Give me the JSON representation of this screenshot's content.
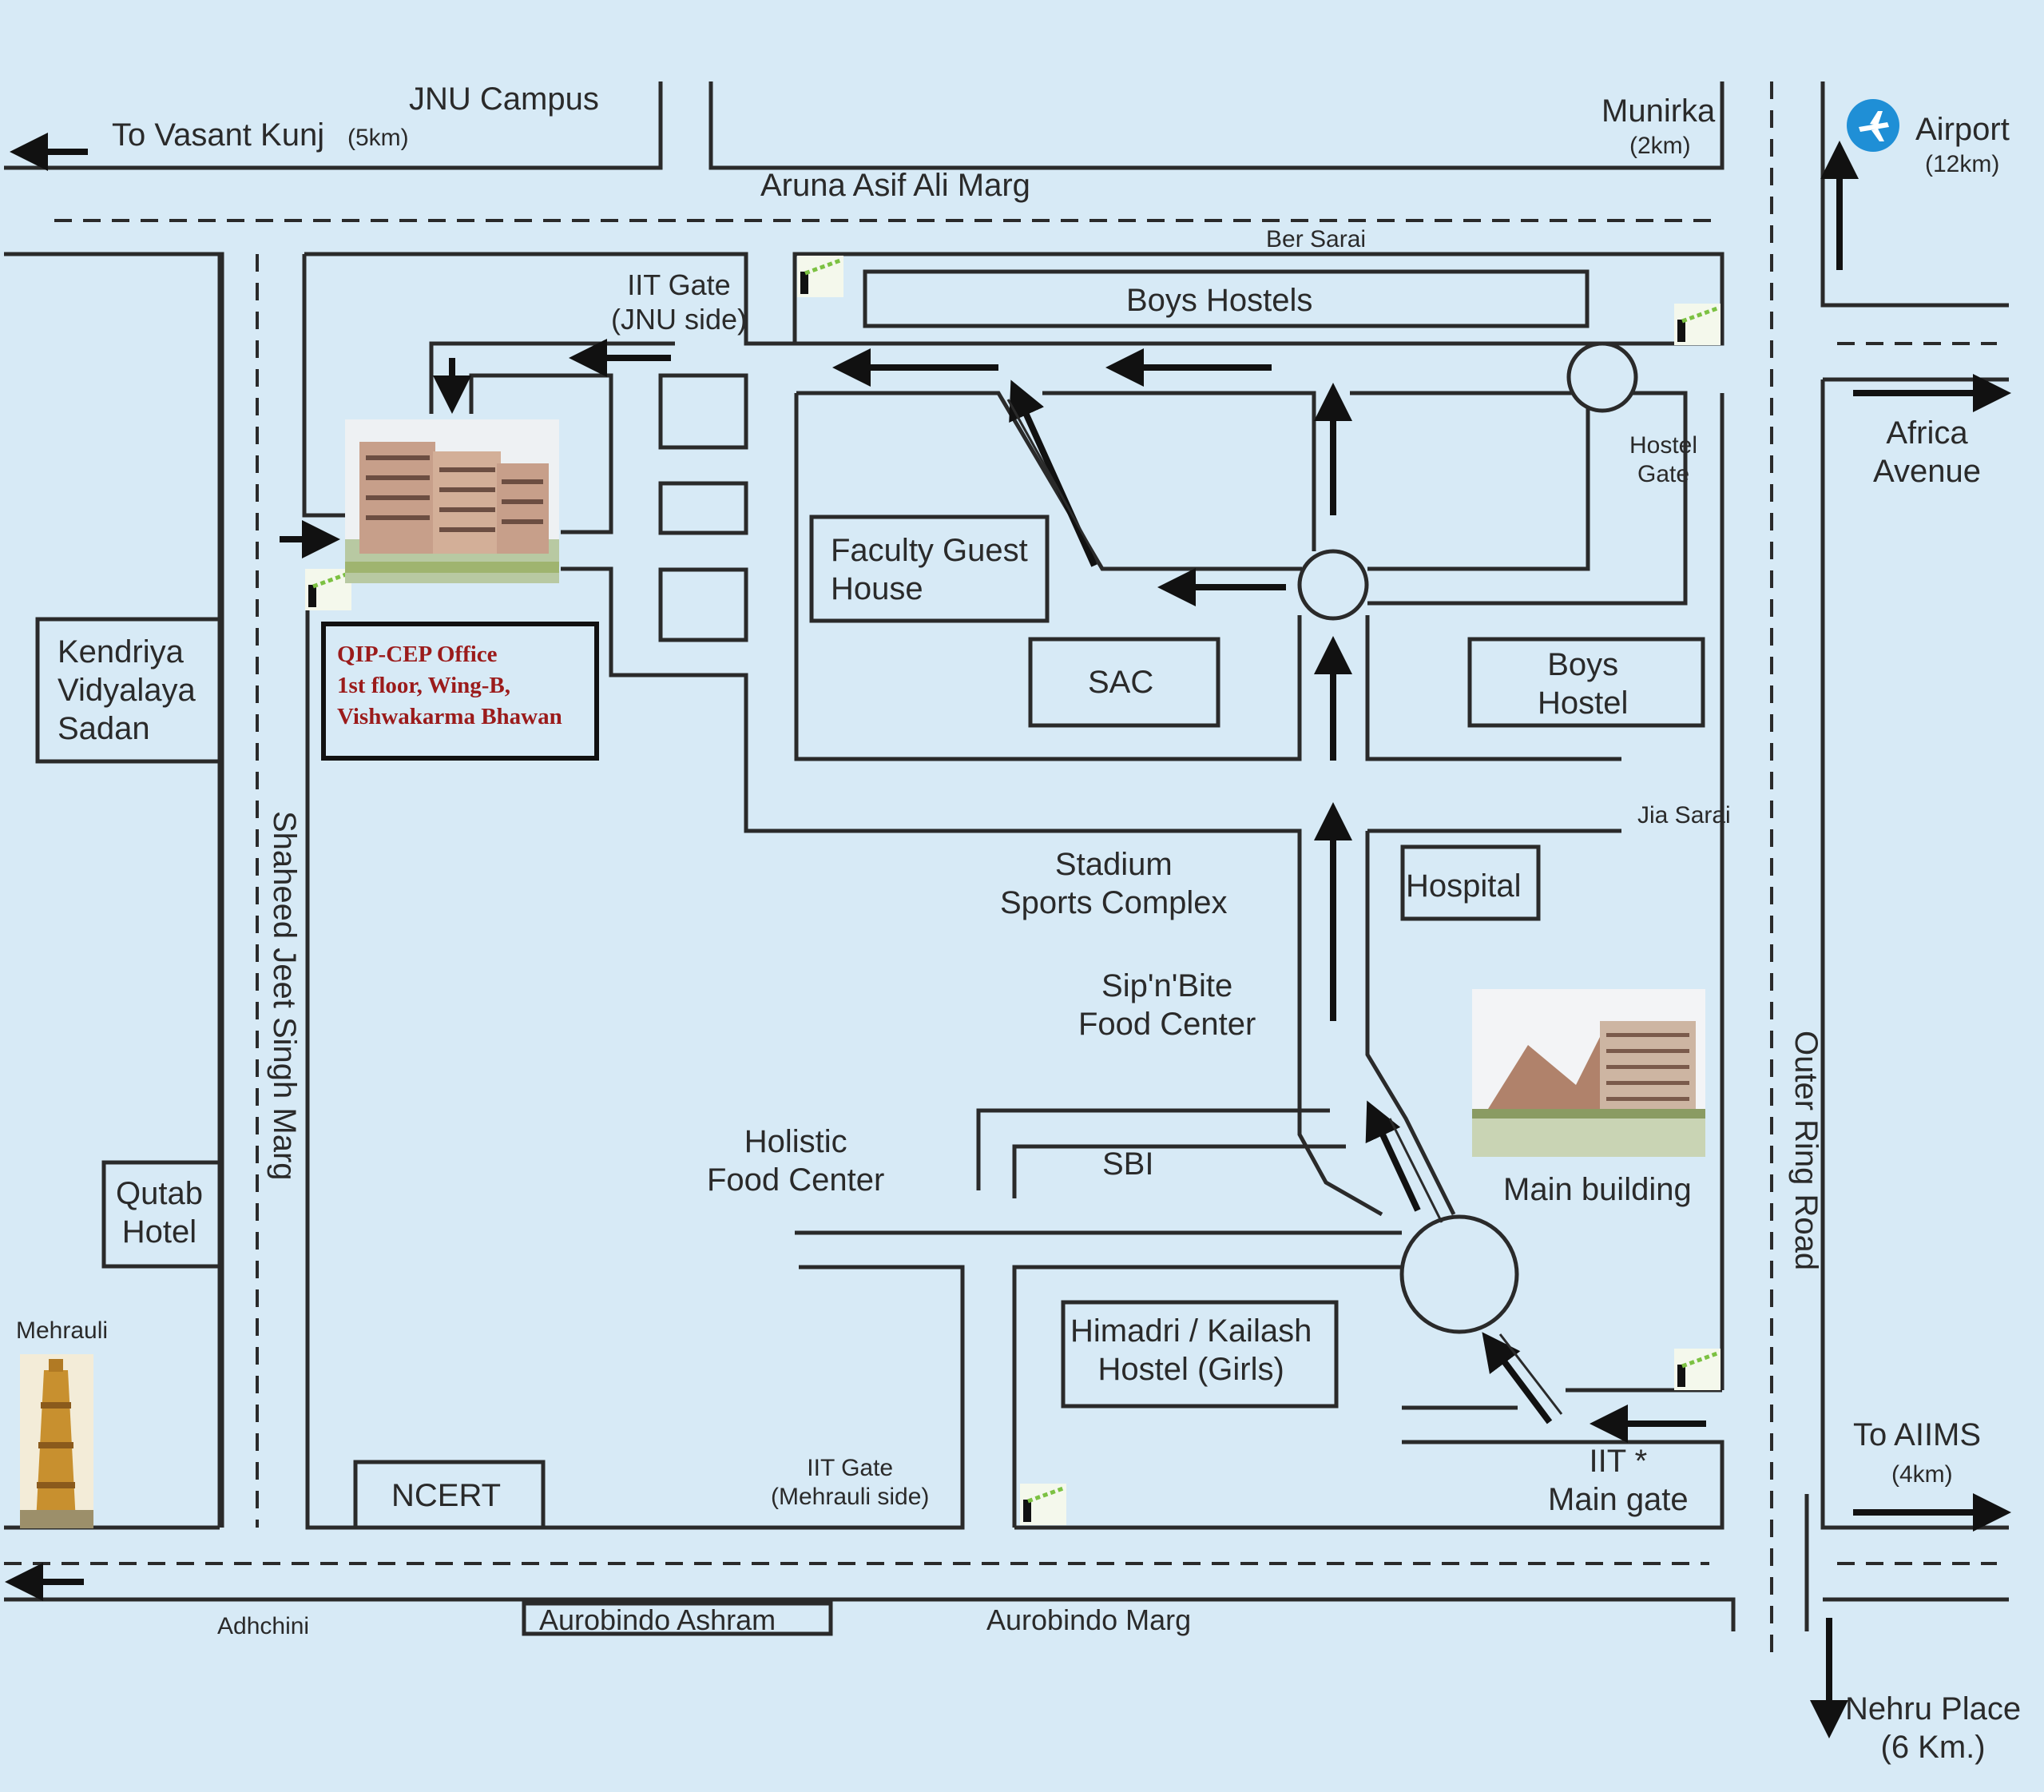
{
  "map": {
    "labels": {
      "jnu_campus": "JNU Campus",
      "to_vasant_kunj": "To Vasant Kunj",
      "vasant_kunj_dist": "(5km)",
      "munirka": "Munirka",
      "munirka_dist": "(2km)",
      "airport": "Airport",
      "airport_dist": "(12km)",
      "aruna_asif_ali_marg": "Aruna Asif Ali Marg",
      "ber_sarai": "Ber Sarai",
      "iit_gate_jnu_line1": "IIT Gate",
      "iit_gate_jnu_line2": "(JNU side)",
      "boys_hostels": "Boys Hostels",
      "hostel_gate_line1": "Hostel",
      "hostel_gate_line2": "Gate",
      "africa_avenue_line1": "Africa",
      "africa_avenue_line2": "Avenue",
      "faculty_guest_house_line1": "Faculty Guest",
      "faculty_guest_house_line2": "House",
      "sac": "SAC",
      "boys_hostel_line1": "Boys",
      "boys_hostel_line2": "Hostel",
      "kendriya_line1": "Kendriya",
      "kendriya_line2": "Vidyalaya",
      "kendriya_line3": "Sadan",
      "jia_sarai": "Jia Sarai",
      "shaheed_jeet_singh_marg": "Shaheed Jeet Singh Marg",
      "stadium_line1": "Stadium",
      "stadium_line2": "Sports Complex",
      "hospital": "Hospital",
      "sipnbite_line1": "Sip'n'Bite",
      "sipnbite_line2": "Food Center",
      "outer_ring_road": "Outer Ring Road",
      "holistic_line1": "Holistic",
      "holistic_line2": "Food Center",
      "sbi": "SBI",
      "main_building": "Main building",
      "qutab_line1": "Qutab",
      "qutab_line2": "Hotel",
      "mehrauli": "Mehrauli",
      "himadri_line1": "Himadri / Kailash",
      "himadri_line2": "Hostel (Girls)",
      "to_aiims": "To AIIMS",
      "aiims_dist": "(4km)",
      "ncert": "NCERT",
      "iit_gate_mehrauli_line1": "IIT Gate",
      "iit_gate_mehrauli_line2": "(Mehrauli side)",
      "iit_main_gate_line1": "IIT *",
      "iit_main_gate_line2": "Main gate",
      "adhchini": "Adhchini",
      "aurobindo_ashram": "Aurobindo Ashram",
      "aurobindo_marg": "Aurobindo Marg",
      "nehru_place_line1": "Nehru Place",
      "nehru_place_line2": "(6 Km.)"
    },
    "office": {
      "line1": "QIP-CEP Office",
      "line2": "1st floor, Wing-B,",
      "line3": "Vishwakarma Bhawan"
    },
    "icons": [
      "airport-icon",
      "gate-barrier-icon",
      "building-photo",
      "qutub-minar-icon",
      "arrow-icon"
    ],
    "colors": {
      "background": "#d7eaf6",
      "road": "#2a2a2a",
      "office_text": "#9b1b1b"
    }
  }
}
